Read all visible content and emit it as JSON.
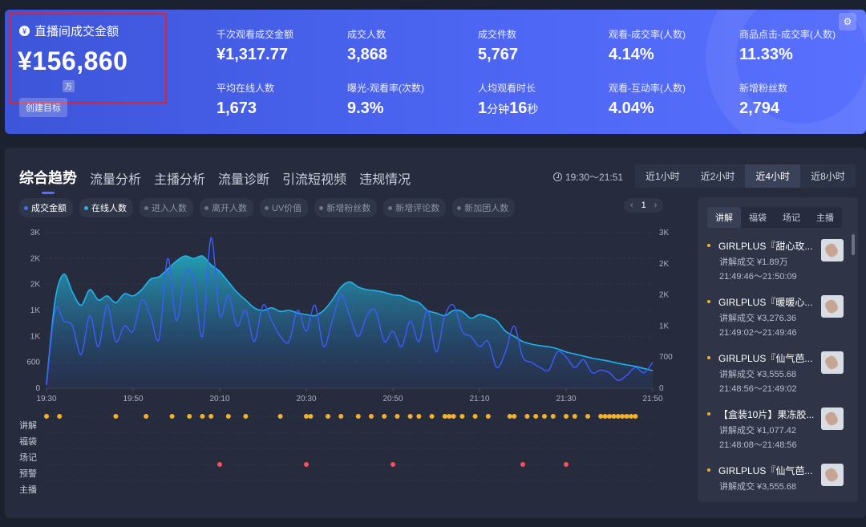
{
  "banner": {
    "main_kpi": {
      "title": "直播间成交金额",
      "value": "¥156,860",
      "unit": "万",
      "create_label": "创建目标"
    },
    "kpis": [
      {
        "label": "千次观看成交金额",
        "value": "¥1,317.77"
      },
      {
        "label": "成交人数",
        "value": "3,868"
      },
      {
        "label": "成交件数",
        "value": "5,767"
      },
      {
        "label": "观看-成交率(人数)",
        "value": "4.14%"
      },
      {
        "label": "商品点击-成交率(人数)",
        "value": "11.33%"
      },
      {
        "label": "平均在线人数",
        "value": "1,673"
      },
      {
        "label": "曝光-观看率(次数)",
        "value": "9.3%"
      },
      {
        "label": "人均观看时长",
        "value_a": "1",
        "unit_a": "分钟",
        "value_b": "16",
        "unit_b": "秒"
      },
      {
        "label": "观看-互动率(人数)",
        "value": "4.04%"
      },
      {
        "label": "新增粉丝数",
        "value": "2,794"
      }
    ]
  },
  "tabs": [
    "综合趋势",
    "流量分析",
    "主播分析",
    "流量诊断",
    "引流短视频",
    "违规情况"
  ],
  "time_range": "19:30～21:51",
  "periods": [
    "近1小时",
    "近2小时",
    "近4小时",
    "近8小时"
  ],
  "legend": [
    {
      "label": "成交金额",
      "on": true,
      "color": "#4a6cff"
    },
    {
      "label": "在线人数",
      "on": true,
      "color": "#1fb3f0"
    },
    {
      "label": "进入人数",
      "on": false
    },
    {
      "label": "离开人数",
      "on": false
    },
    {
      "label": "UV价值",
      "on": false
    },
    {
      "label": "新增粉丝数",
      "on": false
    },
    {
      "label": "新增评论数",
      "on": false
    },
    {
      "label": "新加团人数",
      "on": false
    }
  ],
  "pager": {
    "prev": "‹",
    "page": "1",
    "next": "›"
  },
  "event_rows": [
    "讲解",
    "福袋",
    "场记",
    "预警",
    "主播"
  ],
  "chart_data": {
    "type": "line",
    "x_ticks": [
      "19:30",
      "19:50",
      "20:10",
      "20:30",
      "20:50",
      "21:10",
      "21:30",
      "21:50"
    ],
    "y_left_ticks": [
      "0",
      "600",
      "1K",
      "1K",
      "2K",
      "2K",
      "3K"
    ],
    "y_right_ticks": [
      "0",
      "700",
      "1K",
      "2K",
      "2K",
      "3K"
    ],
    "y_left_range": [
      0,
      3000
    ],
    "y_right_range": [
      0,
      3500
    ],
    "series": [
      {
        "name": "在线人数",
        "color": "#1fb3f0",
        "area": true,
        "x": [
          "19:30",
          "19:32",
          "19:34",
          "19:36",
          "19:38",
          "19:40",
          "19:42",
          "19:44",
          "19:46",
          "19:48",
          "19:50",
          "19:52",
          "19:54",
          "19:56",
          "19:58",
          "20:00",
          "20:02",
          "20:04",
          "20:06",
          "20:08",
          "20:10",
          "20:12",
          "20:14",
          "20:16",
          "20:18",
          "20:20",
          "20:22",
          "20:24",
          "20:26",
          "20:28",
          "20:30",
          "20:32",
          "20:34",
          "20:36",
          "20:38",
          "20:40",
          "20:42",
          "20:44",
          "20:46",
          "20:48",
          "20:50",
          "20:52",
          "20:54",
          "20:56",
          "20:58",
          "21:00",
          "21:02",
          "21:04",
          "21:06",
          "21:08",
          "21:10",
          "21:12",
          "21:14",
          "21:16",
          "21:18",
          "21:20",
          "21:22",
          "21:24",
          "21:26",
          "21:28",
          "21:30",
          "21:32",
          "21:34",
          "21:36",
          "21:38",
          "21:40",
          "21:42",
          "21:44",
          "21:46",
          "21:48",
          "21:50"
        ],
        "y": [
          80,
          1700,
          2200,
          1850,
          1600,
          1900,
          1700,
          1780,
          1650,
          1820,
          1780,
          1900,
          2100,
          2150,
          2300,
          2450,
          2550,
          2500,
          2550,
          2380,
          2250,
          2050,
          1850,
          1700,
          1550,
          1500,
          1550,
          1480,
          1500,
          1450,
          1420,
          1400,
          1500,
          1700,
          1950,
          2050,
          1950,
          1900,
          1880,
          1850,
          1800,
          1780,
          1700,
          1650,
          1500,
          1450,
          1400,
          1500,
          1480,
          1350,
          1420,
          1380,
          1300,
          1100,
          1000,
          900,
          850,
          820,
          800,
          760,
          700,
          660,
          620,
          580,
          550,
          520,
          480,
          450,
          420,
          380,
          340
        ]
      },
      {
        "name": "成交金额",
        "color": "#3d5cff",
        "area": false,
        "x": [
          "19:30",
          "19:32",
          "19:34",
          "19:36",
          "19:38",
          "19:40",
          "19:42",
          "19:44",
          "19:46",
          "19:48",
          "19:50",
          "19:52",
          "19:54",
          "19:56",
          "19:58",
          "20:00",
          "20:02",
          "20:04",
          "20:06",
          "20:08",
          "20:10",
          "20:12",
          "20:14",
          "20:16",
          "20:18",
          "20:20",
          "20:22",
          "20:24",
          "20:26",
          "20:28",
          "20:30",
          "20:32",
          "20:34",
          "20:36",
          "20:38",
          "20:40",
          "20:42",
          "20:44",
          "20:46",
          "20:48",
          "20:50",
          "20:52",
          "20:54",
          "20:56",
          "20:58",
          "21:00",
          "21:02",
          "21:04",
          "21:06",
          "21:08",
          "21:10",
          "21:12",
          "21:14",
          "21:16",
          "21:18",
          "21:20",
          "21:22",
          "21:24",
          "21:26",
          "21:28",
          "21:30",
          "21:32",
          "21:34",
          "21:36",
          "21:38",
          "21:40",
          "21:42",
          "21:44",
          "21:46",
          "21:48",
          "21:50"
        ],
        "y": [
          60,
          1500,
          1300,
          1200,
          650,
          1400,
          800,
          1600,
          900,
          1200,
          1100,
          1700,
          1400,
          950,
          2500,
          1300,
          2200,
          2100,
          1000,
          2900,
          1400,
          1800,
          1200,
          1500,
          900,
          1600,
          1300,
          1000,
          900,
          1500,
          1100,
          1600,
          800,
          1300,
          1800,
          1400,
          1000,
          1400,
          1500,
          900,
          1100,
          800,
          1300,
          900,
          1500,
          700,
          1400,
          1600,
          1100,
          1000,
          800,
          900,
          400,
          700,
          1200,
          600,
          500,
          400,
          350,
          700,
          600,
          400,
          550,
          300,
          350,
          300,
          150,
          250,
          400,
          300,
          500
        ]
      }
    ],
    "event_markers": {
      "讲解": [
        "19:30",
        "19:33",
        "19:46",
        "19:53",
        "19:59",
        "20:03",
        "20:06",
        "20:08",
        "20:12",
        "20:16",
        "20:24",
        "20:30",
        "20:31",
        "20:35",
        "20:38",
        "20:42",
        "20:45",
        "20:48",
        "20:51",
        "20:54",
        "20:56",
        "20:59",
        "21:02",
        "21:03",
        "21:04",
        "21:06",
        "21:09",
        "21:12",
        "21:17",
        "21:18",
        "21:21",
        "21:23",
        "21:25",
        "21:27",
        "21:30",
        "21:32",
        "21:35",
        "21:38",
        "21:39",
        "21:40",
        "21:41",
        "21:42",
        "21:43",
        "21:44",
        "21:45",
        "21:46"
      ],
      "福袋": [],
      "场记": [],
      "预警": [
        "20:10",
        "20:30",
        "20:50",
        "21:20",
        "21:30"
      ],
      "主播": []
    },
    "marker_colors": {
      "讲解": "#f2b12a",
      "预警": "#ff4d5a"
    }
  },
  "side_panel": {
    "tabs": [
      "讲解",
      "福袋",
      "场记",
      "主播"
    ],
    "items": [
      {
        "name": "GIRLPLUS『甜心玫...",
        "sale": "讲解成交 ¥1.89万",
        "time": "21:49:46～21:50:09"
      },
      {
        "name": "GIRLPLUS『暖暖心...",
        "sale": "讲解成交 ¥3,276.36",
        "time": "21:49:02～21:49:46"
      },
      {
        "name": "GIRLPLUS『仙气芭...",
        "sale": "讲解成交 ¥3,555.68",
        "time": "21:48:56～21:49:02"
      },
      {
        "name": "【盒装10片】果冻胶...",
        "sale": "讲解成交 ¥1,077.42",
        "time": "21:48:08～21:48:56"
      },
      {
        "name": "GIRLPLUS『仙气芭...",
        "sale": "讲解成交 ¥3,555.68",
        "time": ""
      }
    ]
  }
}
